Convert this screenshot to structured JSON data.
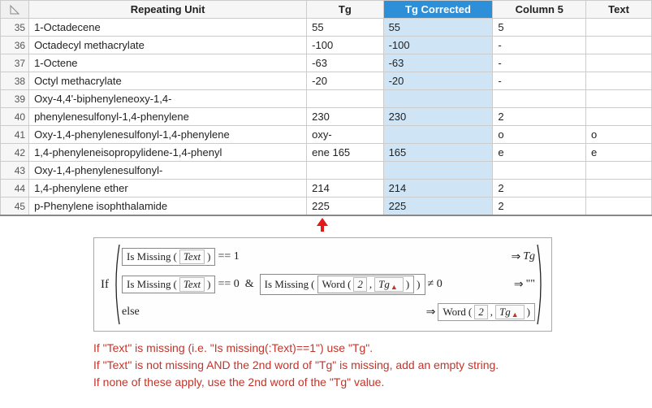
{
  "table": {
    "headers": {
      "repeating_unit": "Repeating Unit",
      "tg": "Tg",
      "tg_corrected": "Tg Corrected",
      "column5": "Column 5",
      "text": "Text"
    },
    "highlighted_column": "tg_corrected",
    "rows": [
      {
        "n": "35",
        "ru": "1-Octadecene",
        "tg": "55",
        "tgc": "55",
        "c5": "5",
        "txt": ""
      },
      {
        "n": "36",
        "ru": "Octadecyl methacrylate",
        "tg": "-100",
        "tgc": "-100",
        "c5": "-",
        "txt": ""
      },
      {
        "n": "37",
        "ru": "1-Octene",
        "tg": "-63",
        "tgc": "-63",
        "c5": "-",
        "txt": ""
      },
      {
        "n": "38",
        "ru": "Octyl methacrylate",
        "tg": "-20",
        "tgc": "-20",
        "c5": "-",
        "txt": ""
      },
      {
        "n": "39",
        "ru": "Oxy-4,4'-biphenyleneoxy-1,4-",
        "tg": "",
        "tgc": "",
        "c5": "",
        "txt": ""
      },
      {
        "n": "40",
        "ru": "phenylenesulfonyl-1,4-phenylene",
        "tg": "230",
        "tgc": "230",
        "c5": "2",
        "txt": ""
      },
      {
        "n": "41",
        "ru": "Oxy-1,4-phenylenesulfonyl-1,4-phenylene",
        "tg": "oxy-",
        "tgc": "",
        "c5": "o",
        "txt": "o"
      },
      {
        "n": "42",
        "ru": " 1,4-phenyleneisopropylidene-1,4-phenyl",
        "tg": "ene 165",
        "tgc": "165",
        "c5": "e",
        "txt": "e"
      },
      {
        "n": "43",
        "ru": "Oxy-1,4-phenylenesulfonyl-",
        "tg": "",
        "tgc": "",
        "c5": "",
        "txt": ""
      },
      {
        "n": "44",
        "ru": "1,4-phenylene ether",
        "tg": "214",
        "tgc": "214",
        "c5": "2",
        "txt": ""
      },
      {
        "n": "45",
        "ru": "p-Phenylene isophthalamide",
        "tg": "225",
        "tgc": "225",
        "c5": "2",
        "txt": ""
      }
    ]
  },
  "formula": {
    "if_label": "If",
    "branch1": {
      "ismissing": "Is Missing",
      "text_var": "Text",
      "eq": "== 1",
      "arrow": "⇒",
      "result": "Tg"
    },
    "branch2": {
      "ismissing1": "Is Missing",
      "text_var": "Text",
      "eq1": "== 0",
      "amp": "&",
      "ismissing2": "Is Missing",
      "word": "Word",
      "two": "2",
      "comma": ",",
      "tg_var": "Tg",
      "neq": "≠ 0",
      "arrow": "⇒",
      "result": "\"\""
    },
    "branch3": {
      "else_label": "else",
      "arrow": "⇒",
      "word": "Word",
      "two": "2",
      "comma": ",",
      "tg_var": "Tg"
    }
  },
  "notes": {
    "line1": "If \"Text\" is missing (i.e. \"Is missing(:Text)==1\") use \"Tg\".",
    "line2": "If \"Text\" is not missing AND the 2nd word of \"Tg\" is missing, add an empty string.",
    "line3": "If none of these apply, use the 2nd word of the \"Tg\" value."
  }
}
